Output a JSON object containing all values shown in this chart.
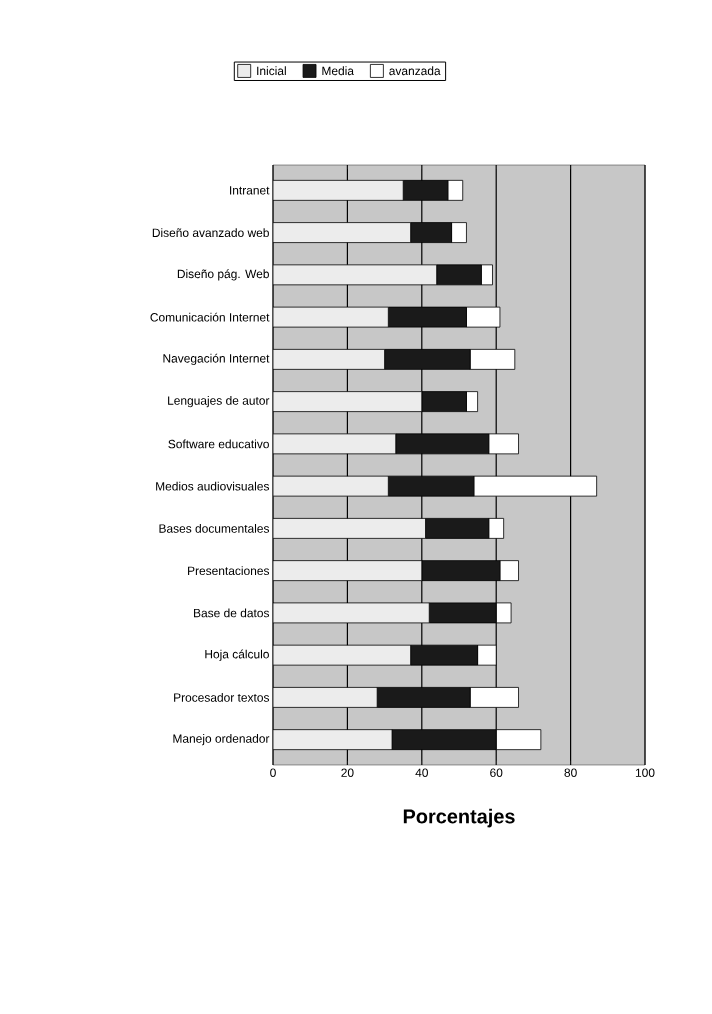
{
  "chart_data": {
    "type": "bar",
    "orientation": "horizontal",
    "stacked": true,
    "categories": [
      "Intranet",
      "Diseño avanzado web",
      "Diseño pág. Web",
      "Comunicación Internet",
      "Navegación Internet",
      "Lenguajes de autor",
      "Software educativo",
      "Medios audiovisuales",
      "Bases documentales",
      "Presentaciones",
      "Base de datos",
      "Hoja cálculo",
      "Procesador textos",
      "Manejo  ordenador"
    ],
    "series": [
      {
        "name": "Inicial",
        "color": "#ececec",
        "values": [
          35,
          37,
          44,
          31,
          30,
          40,
          33,
          31,
          41,
          40,
          42,
          37,
          28,
          32
        ]
      },
      {
        "name": "Media",
        "color": "#1a1a1a",
        "values": [
          12,
          11,
          12,
          21,
          23,
          12,
          25,
          23,
          17,
          21,
          18,
          18,
          25,
          28
        ]
      },
      {
        "name": "avanzada",
        "color": "#ffffff",
        "values": [
          4,
          4,
          3,
          9,
          12,
          3,
          8,
          33,
          4,
          5,
          4,
          5,
          13,
          12
        ]
      }
    ],
    "xlabel": "Porcentajes",
    "xlim": [
      0,
      100
    ],
    "xticks": [
      0,
      20,
      40,
      60,
      80,
      100
    ],
    "grid": "x",
    "legend": "top"
  }
}
